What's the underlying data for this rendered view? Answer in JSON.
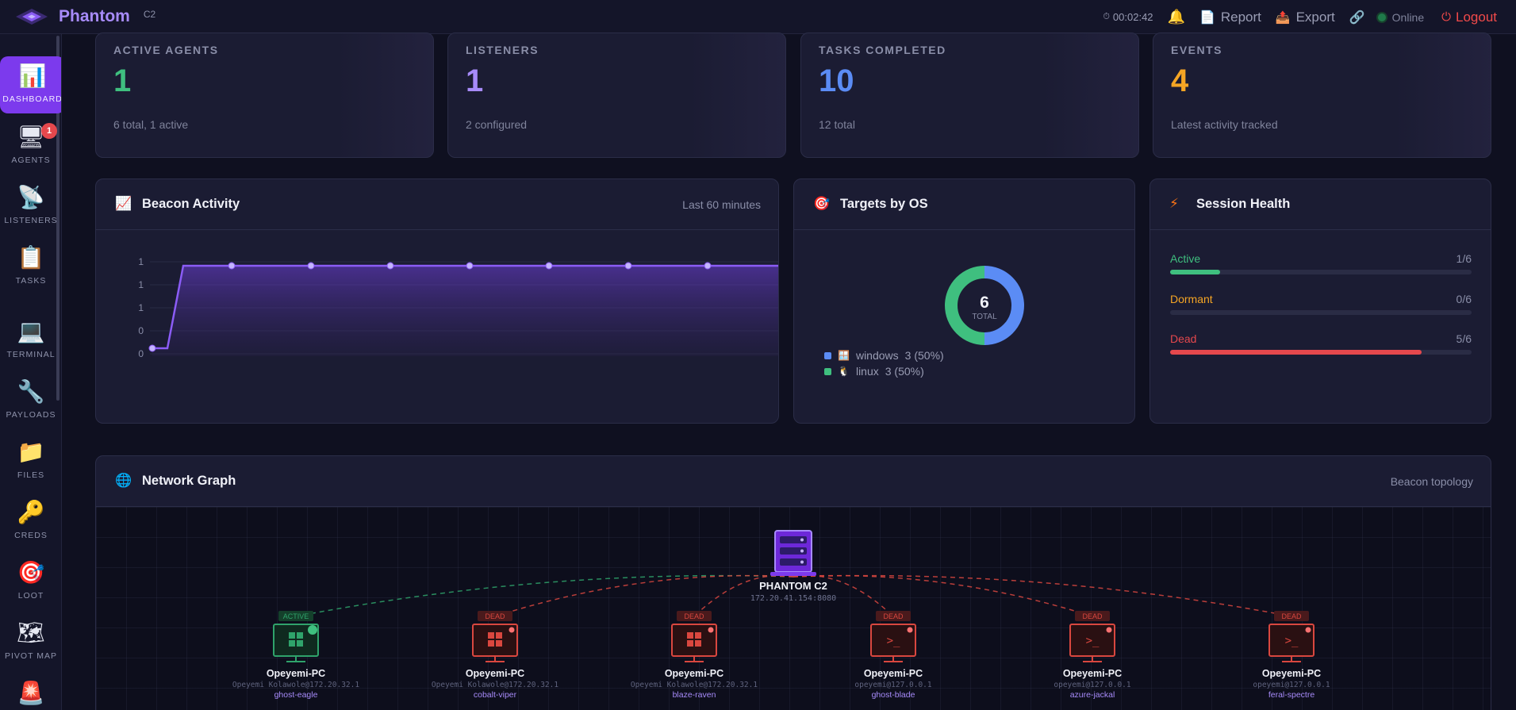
{
  "app": {
    "name": "Phantom",
    "subtitle": "C2"
  },
  "topbar": {
    "timer": "00:02:42",
    "report_label": "Report",
    "export_label": "Export",
    "status_label": "Online",
    "logout_label": "Logout"
  },
  "sidebar": {
    "items": [
      {
        "label": "DASHBOARD",
        "icon": "chart-icon",
        "active": true
      },
      {
        "label": "AGENTS",
        "icon": "monitor-icon",
        "badge": "1"
      },
      {
        "label": "LISTENERS",
        "icon": "satellite-icon"
      },
      {
        "label": "TASKS",
        "icon": "clipboard-icon"
      },
      {
        "label": "TERMINAL",
        "icon": "laptop-icon"
      },
      {
        "label": "PAYLOADS",
        "icon": "wrench-icon"
      },
      {
        "label": "FILES",
        "icon": "folder-icon"
      },
      {
        "label": "CREDS",
        "icon": "key-icon"
      },
      {
        "label": "LOOT",
        "icon": "target-icon"
      },
      {
        "label": "PIVOT MAP",
        "icon": "map-icon"
      }
    ]
  },
  "stats": [
    {
      "label": "ACTIVE AGENTS",
      "value": "1",
      "sub": "6 total, 1 active",
      "color": "#3fbf7f"
    },
    {
      "label": "LISTENERS",
      "value": "1",
      "sub": "2 configured",
      "color": "#a78bfa"
    },
    {
      "label": "TASKS COMPLETED",
      "value": "10",
      "sub": "12 total",
      "color": "#5b8cf5"
    },
    {
      "label": "EVENTS",
      "value": "4",
      "sub": "Latest activity tracked",
      "color": "#f5a524"
    }
  ],
  "beacon": {
    "title": "Beacon Activity",
    "meta": "Last 60 minutes",
    "chart_data": {
      "type": "area",
      "y_tick_labels": [
        "1",
        "1",
        "1",
        "0",
        "0"
      ],
      "values": [
        0,
        0,
        1,
        1,
        1,
        1,
        1,
        1,
        1,
        1,
        1
      ],
      "ylim": [
        0,
        1
      ],
      "color": "#8b5cf6"
    }
  },
  "os": {
    "title": "Targets by OS",
    "total": "6",
    "total_label": "TOTAL",
    "chart_data": {
      "type": "pie",
      "categories": [
        "windows",
        "linux"
      ],
      "values": [
        3,
        3
      ],
      "labels": [
        "3 (50%)",
        "3 (50%)"
      ],
      "colors": [
        "#5b8cf5",
        "#3fbf7f"
      ]
    }
  },
  "health": {
    "title": "Session Health",
    "rows": [
      {
        "label": "Active",
        "value": "1/6",
        "fraction": 0.1667,
        "color": "#3fbf7f"
      },
      {
        "label": "Dormant",
        "value": "0/6",
        "fraction": 0,
        "color": "#f5a524"
      },
      {
        "label": "Dead",
        "value": "5/6",
        "fraction": 0.8333,
        "color": "#e5484d"
      }
    ]
  },
  "network": {
    "title": "Network Graph",
    "meta": "Beacon topology",
    "server": {
      "name": "PHANTOM C2",
      "address": "172.20.41.154:8080"
    },
    "nodes": [
      {
        "status": "ACTIVE",
        "host": "Opeyemi-PC",
        "user": "Opeyemi Kolawole@172.20.32.1",
        "alias": "ghost-eagle",
        "os": "windows"
      },
      {
        "status": "DEAD",
        "host": "Opeyemi-PC",
        "user": "Opeyemi Kolawole@172.20.32.1",
        "alias": "cobalt-viper",
        "os": "windows"
      },
      {
        "status": "DEAD",
        "host": "Opeyemi-PC",
        "user": "Opeyemi Kolawole@172.20.32.1",
        "alias": "blaze-raven",
        "os": "windows"
      },
      {
        "status": "DEAD",
        "host": "Opeyemi-PC",
        "user": "opeyemi@127.0.0.1",
        "alias": "ghost-blade",
        "os": "linux"
      },
      {
        "status": "DEAD",
        "host": "Opeyemi-PC",
        "user": "opeyemi@127.0.0.1",
        "alias": "azure-jackal",
        "os": "linux"
      },
      {
        "status": "DEAD",
        "host": "Opeyemi-PC",
        "user": "opeyemi@127.0.0.1",
        "alias": "feral-spectre",
        "os": "linux"
      }
    ],
    "colors": {
      "active": "#2fa36b",
      "dead": "#d9473f",
      "server": "#7c3aed"
    }
  }
}
